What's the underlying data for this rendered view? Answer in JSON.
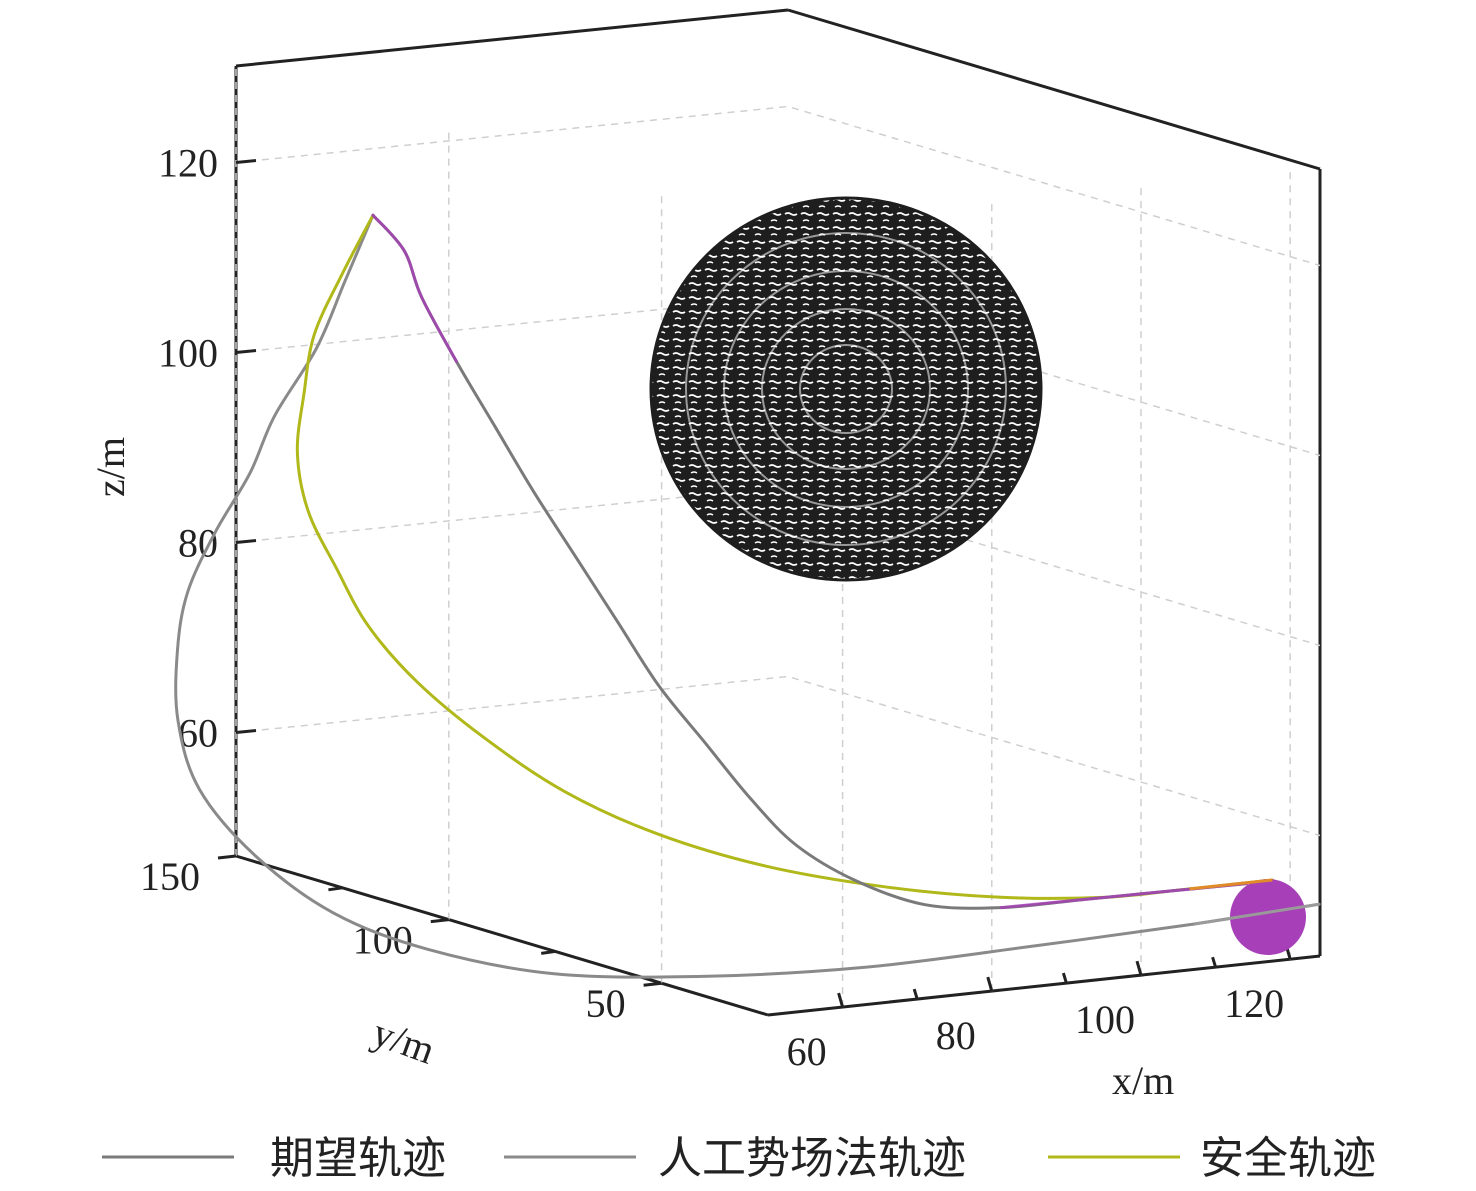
{
  "chart_data": {
    "type": "line3d",
    "axes": {
      "x": {
        "label": "x/m",
        "ticks": [
          60,
          80,
          100,
          120
        ],
        "range": [
          50,
          125
        ]
      },
      "y": {
        "label": "y/m",
        "ticks": [
          50,
          100,
          150
        ],
        "range": [
          35,
          160
        ]
      },
      "z": {
        "label": "z/m",
        "ticks": [
          60,
          80,
          100,
          120
        ],
        "range": [
          47,
          130
        ]
      }
    },
    "grid": true,
    "legend": {
      "placement": "bottom",
      "entries": [
        {
          "label": "期望轨迹",
          "color": "#7a7a7a"
        },
        {
          "label": "人工势场法轨迹",
          "color": "#8a8a8a"
        },
        {
          "label": "安全轨迹",
          "color": "#b0b81a"
        }
      ]
    },
    "obstacle": {
      "shape": "sphere",
      "color": "#1e1e1e"
    },
    "goal": {
      "shape": "sphere",
      "color": "#a63fb8"
    },
    "series": [
      {
        "name": "期望轨迹",
        "color": "#7a7a7a",
        "highlight_color": "#a63fb8",
        "points": [
          [
            67,
            128,
            127
          ],
          [
            69,
            127,
            123
          ],
          [
            70,
            126,
            118
          ],
          [
            72,
            124,
            111
          ],
          [
            74,
            121,
            104
          ],
          [
            76,
            118,
            97
          ],
          [
            78,
            114,
            90
          ],
          [
            80,
            110,
            83
          ],
          [
            82,
            106,
            76
          ],
          [
            84,
            101,
            70
          ],
          [
            86,
            96,
            64
          ],
          [
            88,
            91,
            59
          ],
          [
            91,
            86,
            55
          ],
          [
            95,
            82,
            52
          ],
          [
            100,
            80,
            51
          ],
          [
            106,
            79,
            51
          ],
          [
            112,
            78,
            51
          ],
          [
            117,
            77,
            51
          ]
        ]
      },
      {
        "name": "人工势场法轨迹",
        "color": "#8a8a8a",
        "points": [
          [
            67,
            128,
            127
          ],
          [
            66,
            132,
            120
          ],
          [
            65,
            136,
            113
          ],
          [
            63,
            140,
            106
          ],
          [
            62,
            143,
            100
          ],
          [
            60,
            145,
            94
          ],
          [
            58,
            145,
            88
          ],
          [
            57,
            144,
            82
          ],
          [
            56,
            140,
            75
          ],
          [
            56,
            134,
            68
          ],
          [
            58,
            126,
            61
          ],
          [
            61,
            116,
            55
          ],
          [
            65,
            105,
            51
          ],
          [
            71,
            93,
            48
          ],
          [
            79,
            81,
            47
          ],
          [
            88,
            71,
            47
          ],
          [
            98,
            63,
            48
          ],
          [
            108,
            57,
            49
          ],
          [
            116,
            53,
            50
          ]
        ]
      },
      {
        "name": "安全轨迹",
        "color": "#b0b81a",
        "highlight_color": "#e08a2a",
        "points": [
          [
            67,
            128,
            127
          ],
          [
            65,
            129,
            121
          ],
          [
            63,
            129,
            115
          ],
          [
            62,
            128,
            109
          ],
          [
            61,
            126,
            103
          ],
          [
            61,
            123,
            97
          ],
          [
            62,
            119,
            91
          ],
          [
            63,
            114,
            85
          ],
          [
            65,
            108,
            79
          ],
          [
            68,
            101,
            73
          ],
          [
            72,
            94,
            67
          ],
          [
            77,
            87,
            62
          ],
          [
            83,
            80,
            58
          ],
          [
            90,
            74,
            55
          ],
          [
            97,
            70,
            53
          ],
          [
            104,
            67,
            52
          ],
          [
            110,
            66,
            52
          ],
          [
            116,
            66,
            52
          ]
        ]
      }
    ]
  }
}
